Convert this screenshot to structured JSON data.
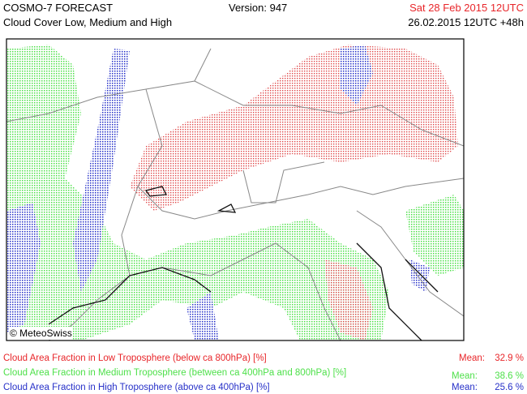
{
  "header": {
    "title": "COSMO-7 FORECAST",
    "subtitle": "Cloud Cover Low, Medium and High",
    "version": "Version: 947",
    "valid_time": "Sat 28 Feb 2015 12UTC",
    "run_time": "26.02.2015 12UTC +48h"
  },
  "map": {
    "copyright": "© MeteoSwiss"
  },
  "legend": [
    {
      "label": "Cloud Area Fraction in Low Troposphere (below ca 800hPa) [%]",
      "mean_label": "Mean:",
      "mean": "32.9 %"
    },
    {
      "label": "Cloud Area Fraction in Medium Troposphere (between ca 400hPa and 800hPa) [%]",
      "mean_label": "Mean:",
      "mean": "38.6 %"
    },
    {
      "label": "Cloud Area Fraction in High Troposphere (above ca 400hPa) [%]",
      "mean_label": "Mean:",
      "mean": "25.6 %"
    }
  ]
}
